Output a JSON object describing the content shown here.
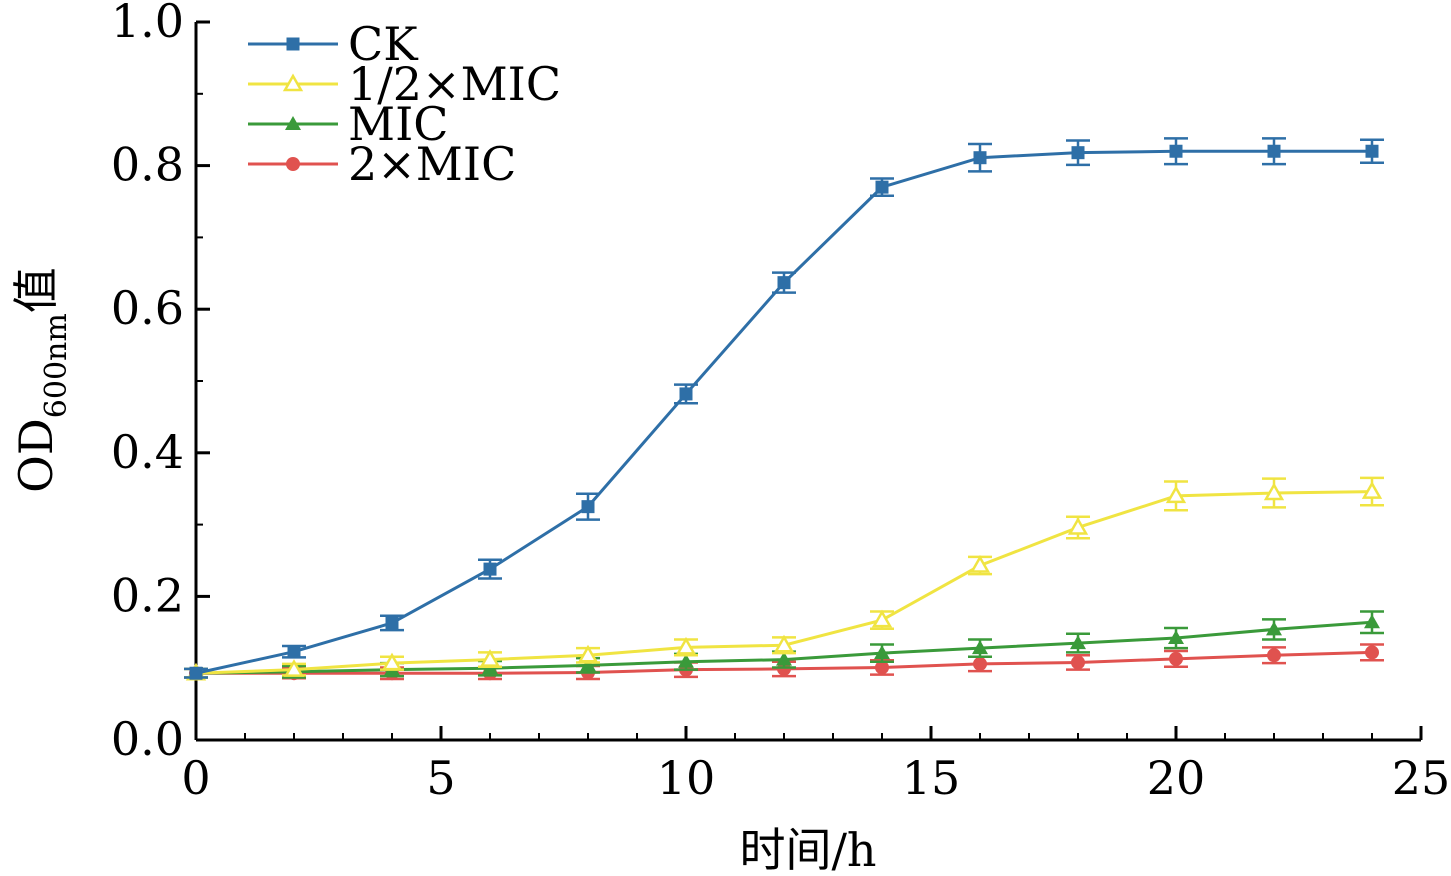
{
  "chart_data": {
    "type": "line",
    "title": "",
    "xlabel": "时间/h",
    "ylabel": {
      "main": "OD",
      "subscript": "600nm",
      "suffix": "值"
    },
    "xlim": [
      0,
      25
    ],
    "ylim": [
      0.0,
      1.0
    ],
    "x_ticks": [
      "0",
      "5",
      "10",
      "15",
      "20",
      "25"
    ],
    "y_ticks": [
      "0.0",
      "0.2",
      "0.4",
      "0.6",
      "0.8",
      "1.0"
    ],
    "grid": false,
    "legend_position": "top-left",
    "x": [
      0,
      2,
      4,
      6,
      8,
      10,
      12,
      14,
      16,
      18,
      20,
      22,
      24
    ],
    "series": [
      {
        "name": "CK",
        "color": "#2e6fa7",
        "marker": "square-filled",
        "values": [
          0.093,
          0.123,
          0.163,
          0.238,
          0.325,
          0.482,
          0.637,
          0.77,
          0.811,
          0.818,
          0.82,
          0.82,
          0.82
        ],
        "errors": [
          0.006,
          0.008,
          0.01,
          0.013,
          0.018,
          0.013,
          0.014,
          0.012,
          0.019,
          0.017,
          0.018,
          0.018,
          0.016
        ]
      },
      {
        "name": "1/2×MIC",
        "color": "#f0e442",
        "marker": "triangle-open",
        "values": [
          0.093,
          0.098,
          0.107,
          0.112,
          0.118,
          0.129,
          0.132,
          0.167,
          0.243,
          0.296,
          0.34,
          0.344,
          0.346
        ],
        "errors": [
          0.006,
          0.008,
          0.009,
          0.01,
          0.01,
          0.011,
          0.011,
          0.012,
          0.012,
          0.015,
          0.02,
          0.02,
          0.019
        ]
      },
      {
        "name": "MIC",
        "color": "#3a9a3a",
        "marker": "triangle-filled",
        "values": [
          0.093,
          0.095,
          0.098,
          0.1,
          0.104,
          0.109,
          0.112,
          0.121,
          0.128,
          0.135,
          0.142,
          0.154,
          0.164
        ],
        "errors": [
          0.006,
          0.008,
          0.009,
          0.01,
          0.01,
          0.011,
          0.011,
          0.012,
          0.012,
          0.013,
          0.014,
          0.014,
          0.015
        ]
      },
      {
        "name": "2×MIC",
        "color": "#e0524f",
        "marker": "circle-filled",
        "values": [
          0.093,
          0.093,
          0.093,
          0.093,
          0.094,
          0.098,
          0.099,
          0.101,
          0.106,
          0.108,
          0.113,
          0.118,
          0.122
        ],
        "errors": [
          0.006,
          0.007,
          0.008,
          0.008,
          0.009,
          0.01,
          0.01,
          0.01,
          0.01,
          0.01,
          0.011,
          0.011,
          0.011
        ]
      }
    ]
  }
}
